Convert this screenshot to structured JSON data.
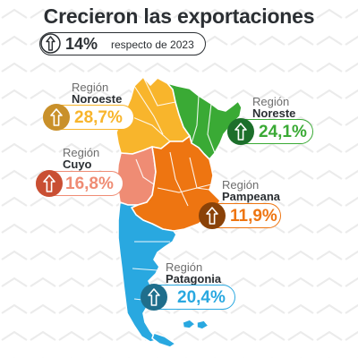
{
  "header": {
    "title": "Crecieron las exportaciones",
    "subtitle_pct": "14%",
    "subtitle_text": "respecto de 2023"
  },
  "colors": {
    "noroeste": "#f8b52c",
    "noreste": "#3aaa35",
    "cuyo": "#ef8c74",
    "pampeana": "#ee7511",
    "patagonia": "#29a8e0",
    "noroeste_badge": "#c9902a",
    "noreste_badge": "#1c6f2b",
    "cuyo_badge": "#c94f33",
    "pampeana_badge": "#8a4208",
    "patagonia_badge": "#1f6e8c",
    "text_dark": "#2b2f33"
  },
  "regions": {
    "noroeste": {
      "label_top": "Región",
      "label_name": "Noroeste",
      "value": "28,7%",
      "icon": "up-arrow-icon"
    },
    "noreste": {
      "label_top": "Región",
      "label_name": "Noreste",
      "value": "24,1%",
      "icon": "up-arrow-icon"
    },
    "cuyo": {
      "label_top": "Región",
      "label_name": "Cuyo",
      "value": "16,8%",
      "icon": "up-arrow-icon"
    },
    "pampeana": {
      "label_top": "Región",
      "label_name": "Pampeana",
      "value": "11,9%",
      "icon": "up-arrow-icon"
    },
    "patagonia": {
      "label_top": "Región",
      "label_name": "Patagonia",
      "value": "20,4%",
      "icon": "up-arrow-icon"
    }
  }
}
